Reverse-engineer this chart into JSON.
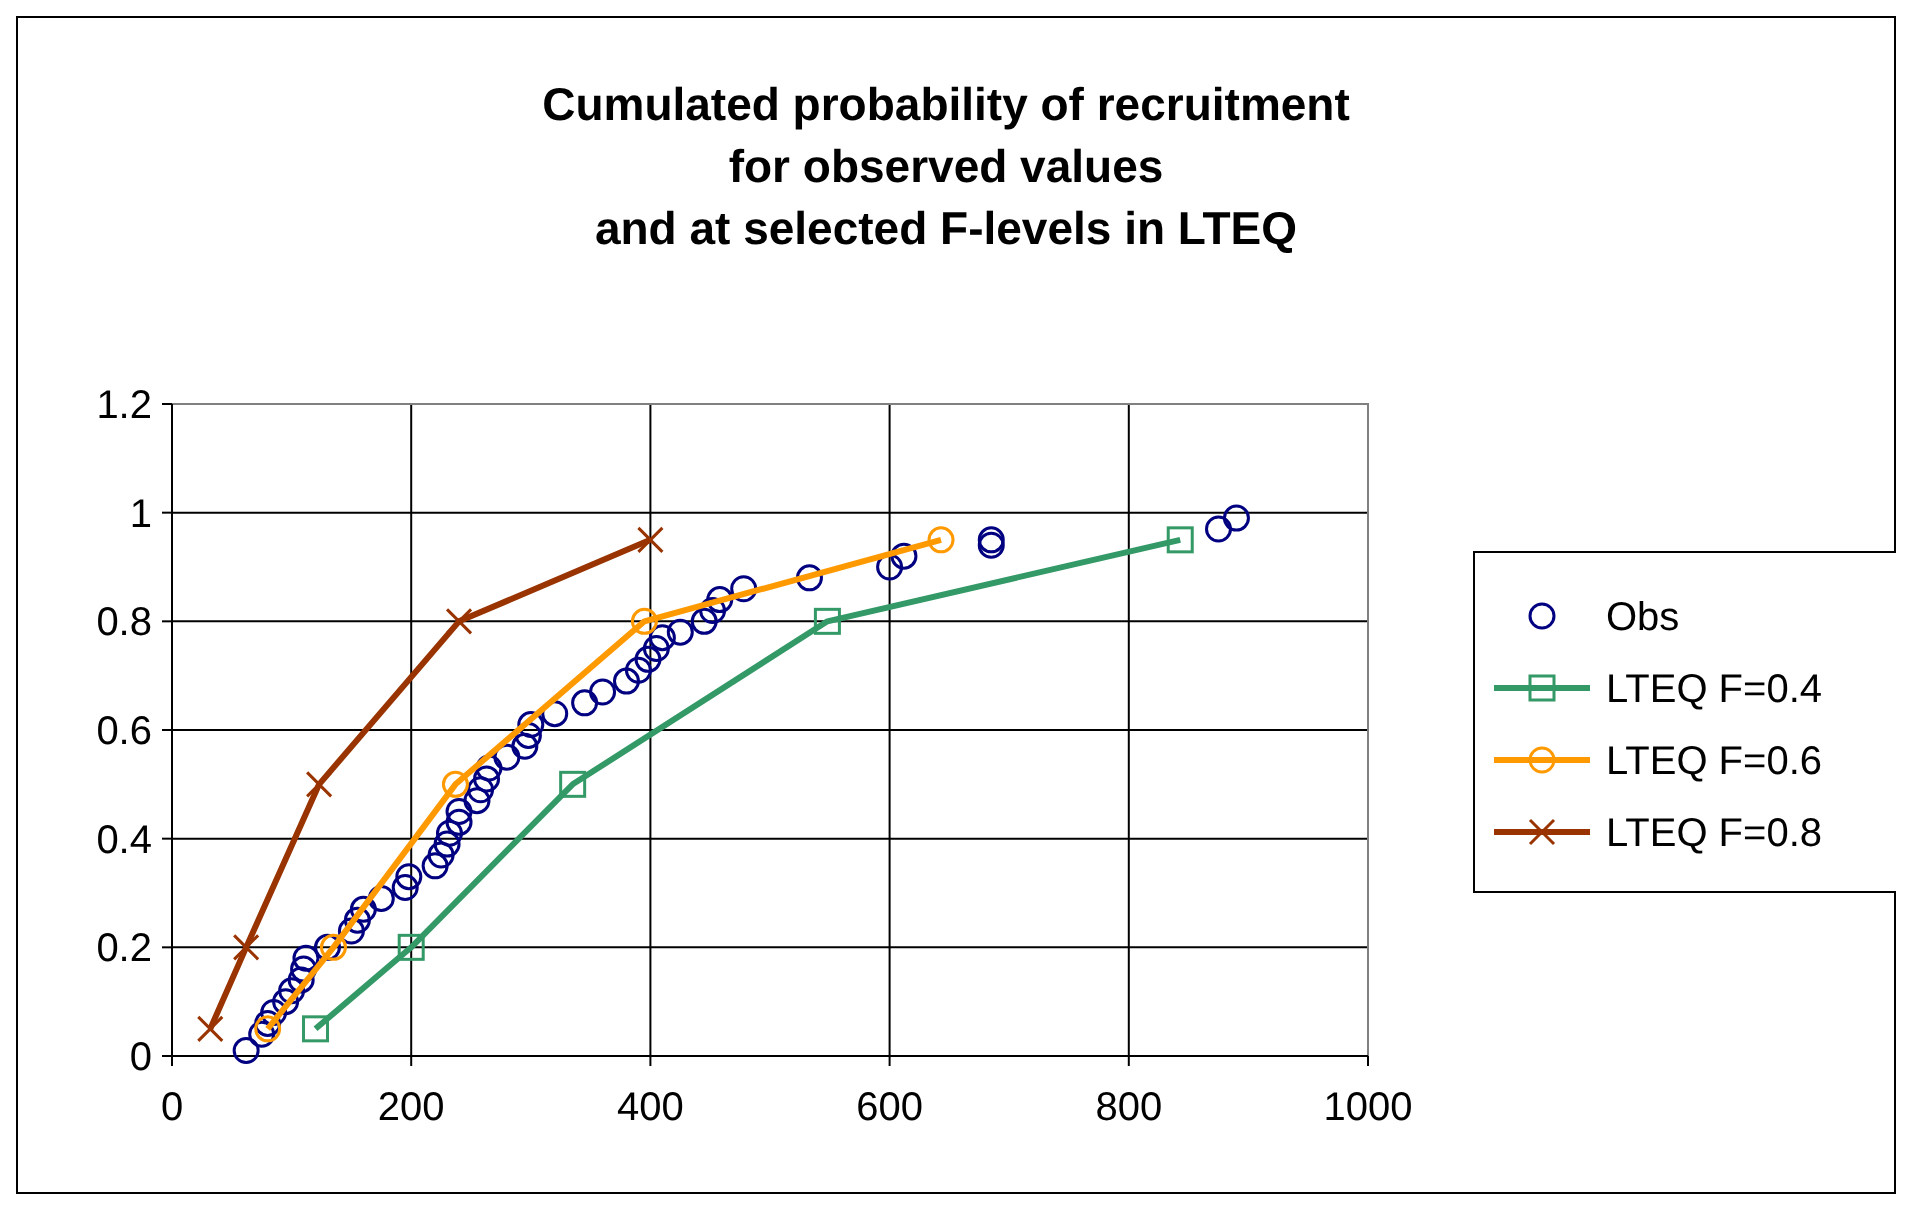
{
  "chart_data": {
    "type": "line",
    "title": "Cumulated probability of recruitment\nfor observed values\nand at selected F-levels in LTEQ",
    "xlim": [
      0,
      1000
    ],
    "xticks": [
      0,
      200,
      400,
      600,
      800,
      1000
    ],
    "ylim": [
      0,
      1.2
    ],
    "yticks": [
      0,
      0.2,
      0.4,
      0.6,
      0.8,
      1,
      1.2
    ],
    "grid": true,
    "legend": "right",
    "series": [
      {
        "name": "Obs",
        "type": "scatter",
        "marker": "circle",
        "color": "#000080",
        "x": [
          62,
          75,
          80,
          85,
          95,
          100,
          108,
          110,
          112,
          130,
          150,
          155,
          160,
          175,
          195,
          198,
          220,
          225,
          230,
          232,
          240,
          240,
          255,
          258,
          263,
          265,
          280,
          295,
          298,
          300,
          320,
          345,
          360,
          380,
          390,
          398,
          405,
          410,
          425,
          445,
          452,
          458,
          478,
          533,
          600,
          612,
          685,
          685,
          875,
          890
        ],
        "values": [
          0.01,
          0.04,
          0.06,
          0.08,
          0.1,
          0.12,
          0.14,
          0.16,
          0.18,
          0.2,
          0.23,
          0.25,
          0.27,
          0.29,
          0.31,
          0.33,
          0.35,
          0.37,
          0.39,
          0.41,
          0.43,
          0.45,
          0.47,
          0.49,
          0.51,
          0.53,
          0.55,
          0.57,
          0.59,
          0.61,
          0.63,
          0.65,
          0.67,
          0.69,
          0.71,
          0.73,
          0.75,
          0.77,
          0.78,
          0.8,
          0.82,
          0.84,
          0.86,
          0.88,
          0.9,
          0.92,
          0.94,
          0.95,
          0.97,
          0.99
        ]
      },
      {
        "name": "LTEQ F=0.4",
        "marker": "square",
        "color": "#339966",
        "x": [
          120,
          200,
          335,
          548,
          843
        ],
        "values": [
          0.05,
          0.2,
          0.5,
          0.8,
          0.95
        ]
      },
      {
        "name": "LTEQ F=0.6",
        "marker": "circle",
        "color": "#ff9900",
        "x": [
          80,
          135,
          237,
          395,
          643
        ],
        "values": [
          0.05,
          0.2,
          0.5,
          0.8,
          0.95
        ]
      },
      {
        "name": "LTEQ F=0.8",
        "marker": "cross",
        "color": "#993300",
        "x": [
          32,
          62,
          123,
          240,
          400
        ],
        "values": [
          0.05,
          0.2,
          0.5,
          0.8,
          0.95
        ]
      }
    ]
  }
}
